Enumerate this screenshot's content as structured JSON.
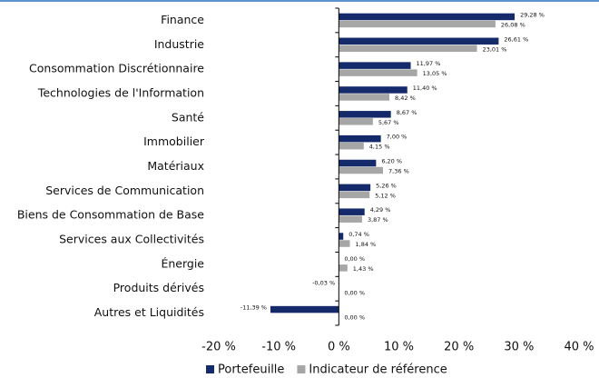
{
  "chart_data": {
    "type": "bar",
    "orientation": "horizontal",
    "categories": [
      "Finance",
      "Industrie",
      "Consommation Discrétionnaire",
      "Technologies de l'Information",
      "Santé",
      "Immobilier",
      "Matériaux",
      "Services de Communication",
      "Biens de Consommation de Base",
      "Services aux Collectivités",
      "Énergie",
      "Produits dérivés",
      "Autres et Liquidités"
    ],
    "series": [
      {
        "name": "Portefeuille",
        "color": "#142a6b",
        "values": [
          29.28,
          26.61,
          11.97,
          11.4,
          8.67,
          7.0,
          6.2,
          5.26,
          4.29,
          0.74,
          0.0,
          -0.03,
          -11.39
        ],
        "value_labels": [
          "29,28 %",
          "26,61 %",
          "11,97 %",
          "11,40 %",
          "8,67 %",
          "7,00 %",
          "6,20 %",
          "5,26 %",
          "4,29 %",
          "0,74 %",
          "0,00 %",
          "-0,03 %",
          "-11,39 %"
        ]
      },
      {
        "name": "Indicateur de référence",
        "color": "#a6a6a6",
        "values": [
          26.08,
          23.01,
          13.05,
          8.42,
          5.67,
          4.15,
          7.36,
          5.12,
          3.87,
          1.84,
          1.43,
          0.0,
          0.0
        ],
        "value_labels": [
          "26,08 %",
          "23,01 %",
          "13,05 %",
          "8,42 %",
          "5,67 %",
          "4,15 %",
          "7,36 %",
          "5,12 %",
          "3,87 %",
          "1,84 %",
          "1,43 %",
          "0,00 %",
          "0,00 %"
        ]
      }
    ],
    "xlim": [
      -20,
      40
    ],
    "xticks": [
      {
        "value": -20,
        "label": "-20 %"
      },
      {
        "value": -10,
        "label": "-10 %"
      },
      {
        "value": 0,
        "label": "0 %"
      },
      {
        "value": 10,
        "label": "10 %"
      },
      {
        "value": 20,
        "label": "20 %"
      },
      {
        "value": 30,
        "label": "30 %"
      },
      {
        "value": 40,
        "label": "40 %"
      }
    ],
    "grid": false,
    "legend": "bottom"
  }
}
